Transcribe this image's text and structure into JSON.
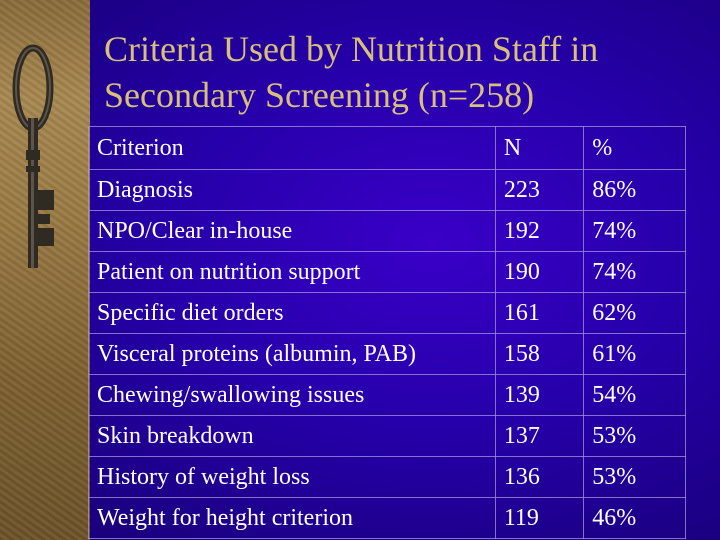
{
  "slide": {
    "title_line1": "Criteria Used by Nutrition Staff in",
    "title_line2": "Secondary Screening (n=258)"
  },
  "decoration": {
    "image": "antique-key-icon",
    "strip_color": "#9a7a44",
    "background_color": "#2a00b0",
    "title_color": "#d9c07a"
  },
  "table": {
    "headers": [
      "Criterion",
      "N",
      "%"
    ],
    "rows": [
      [
        "Diagnosis",
        "223",
        "86%"
      ],
      [
        "NPO/Clear in-house",
        "192",
        "74%"
      ],
      [
        "Patient on nutrition support",
        "190",
        "74%"
      ],
      [
        "Specific diet orders",
        "161",
        "62%"
      ],
      [
        "Visceral proteins (albumin, PAB)",
        "158",
        "61%"
      ],
      [
        "Chewing/swallowing issues",
        "139",
        "54%"
      ],
      [
        "Skin breakdown",
        "137",
        "53%"
      ],
      [
        "History of weight loss",
        "136",
        "53%"
      ],
      [
        "Weight for height criterion",
        "119",
        "46%"
      ]
    ]
  }
}
